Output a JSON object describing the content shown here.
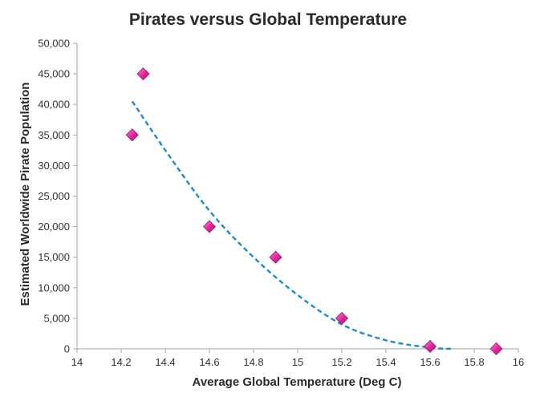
{
  "chart_data": {
    "type": "scatter",
    "title": "Pirates versus Global Temperature",
    "xlabel": "Average Global Temperature (Deg C)",
    "ylabel": "Estimated Worldwide Pirate Population",
    "xlim": [
      14,
      16
    ],
    "ylim": [
      0,
      50000
    ],
    "x_ticks": [
      14,
      14.2,
      14.4,
      14.6,
      14.8,
      15,
      15.2,
      15.4,
      15.6,
      15.8,
      16
    ],
    "x_tick_labels": [
      "14",
      "14.2",
      "14.4",
      "14.6",
      "14.8",
      "15",
      "15.2",
      "15.4",
      "15.6",
      "15.8",
      "16"
    ],
    "y_ticks": [
      0,
      5000,
      10000,
      15000,
      20000,
      25000,
      30000,
      35000,
      40000,
      45000,
      50000
    ],
    "y_tick_labels": [
      "0",
      "5,000",
      "10,000",
      "15,000",
      "20,000",
      "25,000",
      "30,000",
      "35,000",
      "40,000",
      "45,000",
      "50,000"
    ],
    "grid": false,
    "legend": "none",
    "series": [
      {
        "marker": "diamond",
        "color": "#e0239a",
        "points": [
          {
            "x": 14.25,
            "y": 35000
          },
          {
            "x": 14.3,
            "y": 45000
          },
          {
            "x": 14.6,
            "y": 20000
          },
          {
            "x": 14.9,
            "y": 15000
          },
          {
            "x": 15.2,
            "y": 5000
          },
          {
            "x": 15.6,
            "y": 400
          },
          {
            "x": 15.9,
            "y": 17
          }
        ]
      }
    ],
    "trendline": {
      "type": "polynomial",
      "style": "dashed",
      "color": "#1f8fd0",
      "points": [
        {
          "x": 14.25,
          "y": 40500
        },
        {
          "x": 14.4,
          "y": 32500
        },
        {
          "x": 14.6,
          "y": 22600
        },
        {
          "x": 14.8,
          "y": 15000
        },
        {
          "x": 15.0,
          "y": 8800
        },
        {
          "x": 15.2,
          "y": 4000
        },
        {
          "x": 15.4,
          "y": 1400
        },
        {
          "x": 15.6,
          "y": 200
        },
        {
          "x": 15.7,
          "y": 0
        }
      ]
    }
  }
}
